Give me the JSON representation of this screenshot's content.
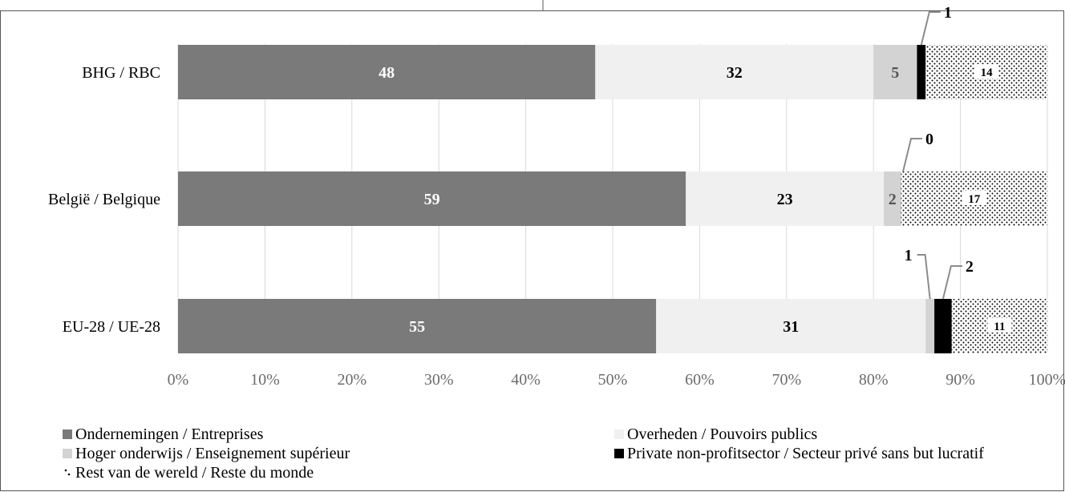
{
  "chart_data": {
    "type": "bar",
    "orientation": "horizontal",
    "stacked": true,
    "percent": true,
    "categories": [
      "BHG / RBC",
      "België / Belgique",
      "EU-28 / UE-28"
    ],
    "series": [
      {
        "name": "Ondernemingen / Entreprises",
        "values": [
          48,
          59,
          55
        ],
        "labels": [
          "48",
          "59",
          "55"
        ],
        "color": "#7a7a7a",
        "pattern": "solid",
        "label_color": "#ffffff"
      },
      {
        "name": "Overheden / Pouvoirs publics",
        "values": [
          32,
          23,
          31
        ],
        "labels": [
          "32",
          "23",
          "31"
        ],
        "color": "#f0f0f0",
        "pattern": "solid",
        "label_color": "#000000"
      },
      {
        "name": "Hoger onderwijs / Enseignement supérieur",
        "values": [
          5,
          2,
          1
        ],
        "labels": [
          "5",
          "2",
          "1"
        ],
        "color": "#d3d3d3",
        "pattern": "solid",
        "label_color": "#555555"
      },
      {
        "name": "Private non-profitsector / Secteur privé sans but lucratif",
        "values": [
          1,
          0,
          2
        ],
        "labels": [
          "1",
          "0",
          "2"
        ],
        "color": "#000000",
        "pattern": "solid",
        "label_color": "#000000"
      },
      {
        "name": "Rest van de wereld / Reste du monde",
        "values": [
          14,
          17,
          11
        ],
        "labels": [
          "14",
          "17",
          "11"
        ],
        "color": "#000000",
        "pattern": "dots",
        "label_color": "#000000"
      }
    ],
    "xlim": [
      0,
      100
    ],
    "xticks": [
      "0%",
      "10%",
      "20%",
      "30%",
      "40%",
      "50%",
      "60%",
      "70%",
      "80%",
      "90%",
      "100%"
    ],
    "grid": "vertical",
    "legend_position": "bottom"
  }
}
